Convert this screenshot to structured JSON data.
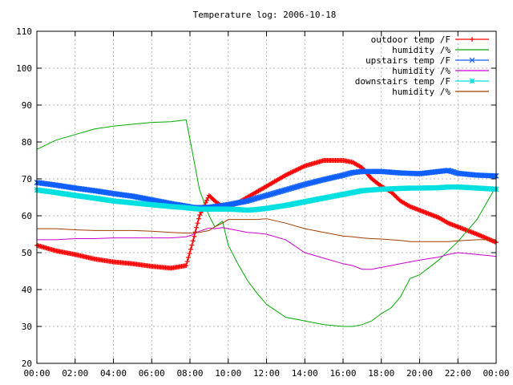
{
  "chart_data": {
    "type": "line",
    "title": "Temperature log: 2006-10-18",
    "xlabel": "",
    "ylabel": "",
    "xlim": [
      "00:00",
      "24:00"
    ],
    "ylim": [
      20,
      110
    ],
    "grid": true,
    "legend_position": "top-right",
    "x_tick_labels": [
      "00:00",
      "02:00",
      "04:00",
      "06:00",
      "08:00",
      "10:00",
      "12:00",
      "14:00",
      "16:00",
      "18:00",
      "20:00",
      "22:00",
      "00:00"
    ],
    "y_tick_labels": [
      "20",
      "30",
      "40",
      "50",
      "60",
      "70",
      "80",
      "90",
      "100",
      "110"
    ],
    "x_hours": [
      0,
      1,
      2,
      3,
      4,
      5,
      6,
      7,
      7.8,
      8.1,
      8.5,
      9,
      9.3,
      9.7,
      10,
      10.5,
      11,
      11.5,
      12,
      13,
      14,
      15,
      16,
      16.5,
      17,
      17.5,
      18,
      18.5,
      19,
      19.5,
      20,
      21,
      21.5,
      22,
      23,
      24
    ],
    "series": [
      {
        "name": "outdoor temp /F",
        "color": "#ff0000",
        "marker": "plus",
        "values": [
          52,
          50.5,
          49.5,
          48.3,
          47.5,
          47,
          46.3,
          45.8,
          46.5,
          52,
          60,
          65.5,
          64,
          62.5,
          62.5,
          63.5,
          65,
          66.5,
          68,
          71,
          73.5,
          75,
          75,
          74.5,
          73,
          70,
          68,
          66.5,
          64,
          62.5,
          61.5,
          59.5,
          58,
          57,
          55,
          52.8
        ]
      },
      {
        "name": "humidity /%",
        "color": "#00aa00",
        "marker": "none",
        "values": [
          78,
          80.5,
          82,
          83.5,
          84.3,
          84.8,
          85.3,
          85.5,
          86,
          78,
          67,
          60,
          57,
          58.5,
          52,
          47,
          42.5,
          39,
          36,
          32.5,
          31.5,
          30.5,
          30,
          30,
          30.5,
          31.5,
          33.5,
          35,
          38,
          43,
          44,
          48,
          50.5,
          53,
          59,
          68
        ]
      },
      {
        "name": "upstairs temp /F",
        "color": "#1060ff",
        "marker": "x",
        "values": [
          69,
          68.3,
          67.5,
          66.8,
          66,
          65.3,
          64.3,
          63.3,
          62.6,
          62.3,
          62.2,
          62.3,
          62.5,
          62.8,
          63,
          63.5,
          64,
          64.8,
          65.5,
          67,
          68.5,
          69.8,
          71,
          71.7,
          72,
          72,
          72,
          71.8,
          71.6,
          71.5,
          71.4,
          72,
          72.3,
          71.5,
          71,
          70.8
        ]
      },
      {
        "name": "humidity /%",
        "color": "#cc00cc",
        "marker": "none",
        "values": [
          53.5,
          53.5,
          53.8,
          53.8,
          54,
          54,
          54,
          54,
          54.3,
          54.8,
          55.8,
          56.7,
          56.5,
          56.8,
          56.5,
          56,
          55.5,
          55.3,
          55,
          53.5,
          50,
          48.5,
          47,
          46.5,
          45.5,
          45.5,
          46,
          46.5,
          47,
          47.5,
          48,
          48.8,
          49.5,
          50,
          49.5,
          49
        ]
      },
      {
        "name": "downstairs temp /F",
        "color": "#00e0e0",
        "marker": "star",
        "values": [
          67,
          66.3,
          65.5,
          64.8,
          64,
          63.5,
          63,
          62.5,
          62.2,
          62,
          61.8,
          61.8,
          61.8,
          61.8,
          61.8,
          61.7,
          61.5,
          61.7,
          62,
          62.8,
          63.8,
          64.8,
          65.8,
          66.3,
          66.8,
          67,
          67.2,
          67.3,
          67.4,
          67.5,
          67.5,
          67.6,
          67.8,
          67.8,
          67.5,
          67.2
        ]
      },
      {
        "name": "humidity /%",
        "color": "#a03c00",
        "marker": "none",
        "values": [
          56.5,
          56.5,
          56.2,
          56,
          56,
          56,
          55.8,
          55.5,
          55.3,
          55.3,
          55.5,
          56,
          57,
          58,
          59,
          59,
          59,
          59,
          59.2,
          58,
          56.5,
          55.5,
          54.5,
          54.3,
          54,
          53.8,
          53.7,
          53.5,
          53.3,
          53,
          53,
          53,
          53,
          53.2,
          53.5,
          53.5
        ]
      }
    ]
  }
}
